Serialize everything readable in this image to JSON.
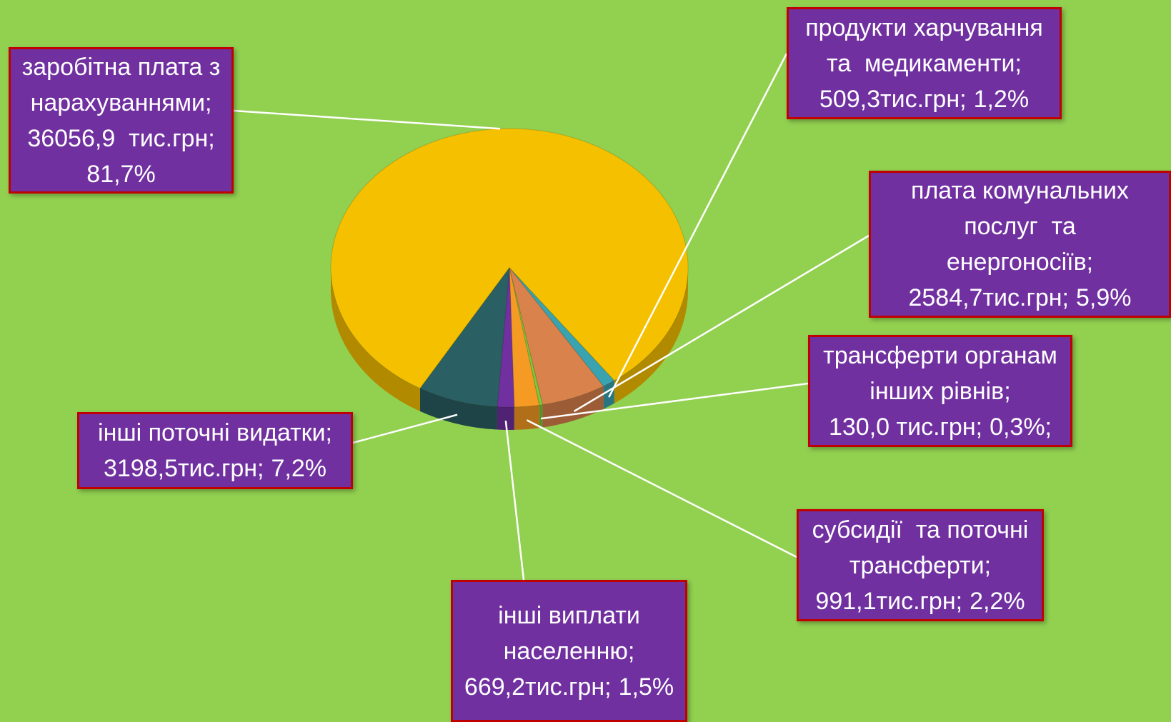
{
  "chart_data": {
    "type": "pie",
    "categories": [
      [
        "заробітна плата з",
        "нарахуваннями;"
      ],
      [
        "продукти харчування",
        "та  медикаменти;"
      ],
      [
        "плата комунальних",
        "послуг  та",
        "енергоносіїв;"
      ],
      [
        "трансферти органам",
        "інших рівнів;"
      ],
      [
        "субсидії  та поточні",
        "трансферти;"
      ],
      [
        "інші виплати",
        "населенню;"
      ],
      [
        "інші поточні видатки;"
      ]
    ],
    "values": [
      36056.9,
      509.3,
      2584.7,
      130.0,
      991.1,
      669.2,
      3198.5
    ],
    "value_labels": [
      "36056,9  тис.грн;",
      "509,3тис.грн;",
      "2584,7тис.грн;",
      "130,0 тис.грн;",
      "991,1тис.грн;",
      "669,2тис.грн;",
      "3198,5тис.грн;"
    ],
    "percent_labels": [
      "81,7%",
      "1,2%",
      "5,9%",
      "0,3%;",
      "2,2%",
      "1,5%",
      "7,2%"
    ],
    "colors": [
      "#f5c000",
      "#3aa3b0",
      "#d9824b",
      "#7ac93a",
      "#f59a23",
      "#7030a0",
      "#2a5f63"
    ]
  }
}
